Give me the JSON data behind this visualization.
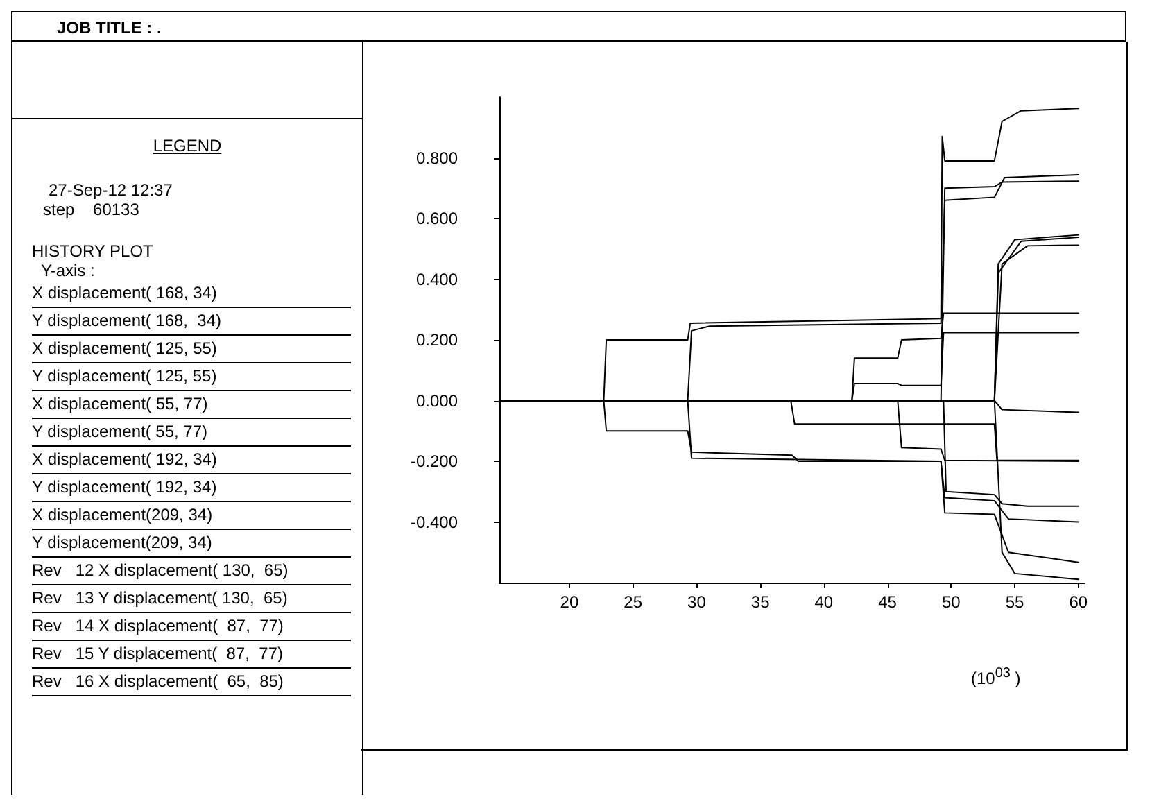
{
  "chart_data": {
    "type": "line",
    "title": "JOB TITLE : .",
    "annotations": [
      "LEGEND",
      "27-Sep-12  12:37",
      "step    60133",
      "HISTORY PLOT",
      "  Y-axis :",
      "X displacement( 168, 34)",
      "Y displacement( 168,  34)",
      "X displacement( 125, 55)",
      "Y displacement( 125, 55)",
      "X displacement( 55, 77)",
      "Y displacement( 55, 77)",
      "X displacement( 192, 34)",
      "Y displacement( 192, 34)",
      "X displacement(209, 34)",
      "Y displacement(209, 34)",
      "Rev   12 X displacement( 130,  65)",
      "Rev   13 Y displacement( 130,  65)",
      "Rev   14 X displacement(  87,  77)",
      "Rev   15 Y displacement(  87,  77)",
      "Rev   16 X displacement(  65,  85)",
      "(10$^{03}$ )"
    ],
    "xlim": [
      14.5,
      60.5
    ],
    "xticks": [
      20,
      25,
      30,
      35,
      40,
      45,
      50,
      55,
      60
    ],
    "ylim": [
      -0.6,
      1.0
    ],
    "yticks": [
      {
        "value": -0.4,
        "label": "-0.400"
      },
      {
        "value": -0.2,
        "label": "-0.200"
      },
      {
        "value": 0,
        "label": "0.000"
      },
      {
        "value": 0.2,
        "label": "0.200"
      },
      {
        "value": 0.4,
        "label": "0.400"
      },
      {
        "value": 0.6,
        "label": "0.600"
      },
      {
        "value": 0.8,
        "label": "0.800"
      }
    ],
    "grid": false,
    "marker": "none",
    "line_style": "solid",
    "series": [
      {
        "color": "#000000",
        "x": [
          14.5,
          22.7,
          22.9,
          29.3,
          29.5,
          49.2,
          49.3,
          49.5,
          53.4,
          54,
          55.5,
          60
        ],
        "values": [
          0,
          0,
          0.2,
          0.2,
          0.255,
          0.27,
          0.87,
          0.79,
          0.79,
          0.92,
          0.955,
          0.963
        ]
      },
      {
        "color": "#000000",
        "x": [
          14.5,
          22.7,
          22.9,
          29.3,
          29.6,
          37.5,
          38,
          49.2,
          49.5,
          53.4,
          54.5,
          60
        ],
        "values": [
          0,
          0,
          -0.1,
          -0.1,
          -0.17,
          -0.18,
          -0.2,
          -0.2,
          -0.32,
          -0.33,
          -0.39,
          -0.4
        ]
      },
      {
        "color": "#000000",
        "x": [
          14.5,
          29.3,
          29.6,
          31,
          49.2,
          49.5,
          53.4,
          54.2,
          60
        ],
        "values": [
          0,
          0,
          0.23,
          0.245,
          0.255,
          0.66,
          0.67,
          0.735,
          0.744
        ]
      },
      {
        "color": "#000000",
        "x": [
          14.5,
          29.3,
          29.6,
          49.2,
          49.5,
          53.4,
          54.5,
          60
        ],
        "values": [
          0,
          0,
          -0.19,
          -0.2,
          -0.37,
          -0.375,
          -0.5,
          -0.533
        ]
      },
      {
        "color": "#000000",
        "x": [
          14.5,
          49.2,
          49.5,
          53.4,
          54,
          60
        ],
        "values": [
          0,
          0,
          0.7,
          0.705,
          0.72,
          0.723
        ]
      },
      {
        "color": "#000000",
        "x": [
          14.5,
          37.4,
          37.7,
          53.4,
          53.6,
          60
        ],
        "values": [
          0,
          0,
          -0.077,
          -0.077,
          -0.197,
          -0.197
        ]
      },
      {
        "color": "#000000",
        "x": [
          14.5,
          42.2,
          42.4,
          45.8,
          46.1,
          49.2,
          49.4,
          60
        ],
        "values": [
          0,
          0,
          0.14,
          0.14,
          0.2,
          0.205,
          0.288,
          0.288
        ]
      },
      {
        "color": "#000000",
        "x": [
          14.5,
          42.2,
          42.4,
          45.8,
          46.1,
          49.2,
          49.4,
          60
        ],
        "values": [
          0,
          0,
          0.056,
          0.056,
          0.05,
          0.05,
          0.224,
          0.224
        ]
      },
      {
        "color": "#000000",
        "x": [
          14.5,
          45.8,
          46.1,
          49.2,
          49.5,
          60
        ],
        "values": [
          0,
          0,
          -0.155,
          -0.16,
          -0.197,
          -0.2
        ]
      },
      {
        "color": "#000000",
        "x": [
          14.5,
          53.4,
          53.7,
          55,
          60
        ],
        "values": [
          0,
          0,
          0.45,
          0.53,
          0.546
        ]
      },
      {
        "color": "#000000",
        "x": [
          14.5,
          53.4,
          53.7,
          55.5,
          60
        ],
        "values": [
          0,
          0,
          0.42,
          0.525,
          0.538
        ]
      },
      {
        "color": "#000000",
        "x": [
          14.5,
          53.4,
          54,
          56,
          60
        ],
        "values": [
          0,
          0,
          0.45,
          0.51,
          0.512
        ]
      },
      {
        "color": "#000000",
        "x": [
          14.5,
          53.4,
          54,
          60
        ],
        "values": [
          0,
          0,
          -0.03,
          -0.039
        ]
      },
      {
        "color": "#000000",
        "x": [
          14.5,
          49.4,
          49.6,
          53.4,
          54,
          56,
          60
        ],
        "values": [
          0,
          0,
          -0.3,
          -0.31,
          -0.34,
          -0.348,
          -0.348
        ]
      },
      {
        "color": "#000000",
        "x": [
          14.5,
          53.4,
          54,
          55,
          60
        ],
        "values": [
          0,
          0,
          -0.5,
          -0.57,
          -0.589
        ]
      }
    ]
  }
}
